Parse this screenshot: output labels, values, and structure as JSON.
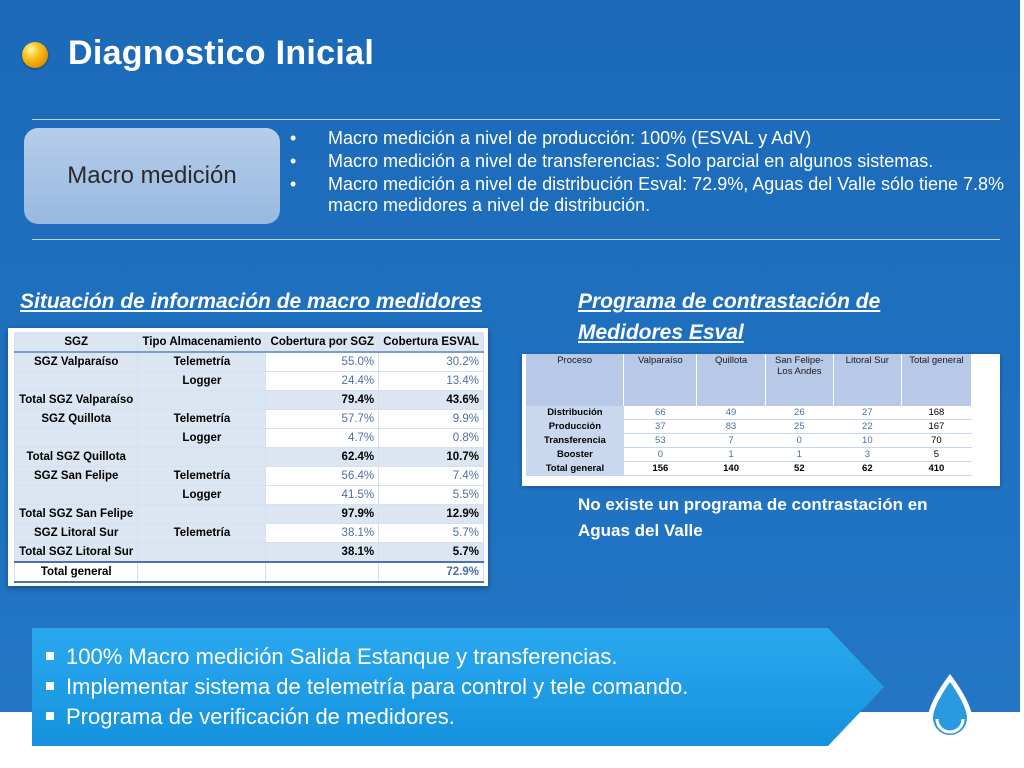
{
  "header": {
    "title": "Diagnostico Inicial"
  },
  "macro": {
    "label": "Macro medición",
    "bullets": [
      "Macro medición a nivel de producción: 100% (ESVAL y AdV)",
      "Macro medición a nivel de transferencias: Solo parcial en algunos sistemas.",
      "Macro medición a nivel de distribución Esval: 72.9%, Aguas del Valle sólo tiene 7.8% macro medidores a nivel de distribución."
    ]
  },
  "left": {
    "title": "Situación de información de macro medidores",
    "table": {
      "headers": [
        "SGZ",
        "Tipo Almacenamiento",
        "Cobertura por SGZ",
        "Cobertura ESVAL"
      ],
      "rows": [
        {
          "kind": "data",
          "sgz": "SGZ Valparaíso",
          "tipo": "Telemetría",
          "cob": "55.0%",
          "esv": "30.2%"
        },
        {
          "kind": "data",
          "sgz": "",
          "tipo": "Logger",
          "cob": "24.4%",
          "esv": "13.4%"
        },
        {
          "kind": "total",
          "sgz": "Total SGZ Valparaíso",
          "tipo": "",
          "cob": "79.4%",
          "esv": "43.6%"
        },
        {
          "kind": "data",
          "sgz": "SGZ Quillota",
          "tipo": "Telemetría",
          "cob": "57.7%",
          "esv": "9.9%"
        },
        {
          "kind": "data",
          "sgz": "",
          "tipo": "Logger",
          "cob": "4.7%",
          "esv": "0.8%"
        },
        {
          "kind": "total",
          "sgz": "Total SGZ Quillota",
          "tipo": "",
          "cob": "62.4%",
          "esv": "10.7%"
        },
        {
          "kind": "data",
          "sgz": "SGZ San Felipe",
          "tipo": "Telemetría",
          "cob": "56.4%",
          "esv": "7.4%"
        },
        {
          "kind": "data",
          "sgz": "",
          "tipo": "Logger",
          "cob": "41.5%",
          "esv": "5.5%"
        },
        {
          "kind": "total",
          "sgz": "Total SGZ San Felipe",
          "tipo": "",
          "cob": "97.9%",
          "esv": "12.9%"
        },
        {
          "kind": "data",
          "sgz": "SGZ Litoral Sur",
          "tipo": "Telemetría",
          "cob": "38.1%",
          "esv": "5.7%"
        },
        {
          "kind": "total",
          "sgz": "Total SGZ Litoral Sur",
          "tipo": "",
          "cob": "38.1%",
          "esv": "5.7%"
        },
        {
          "kind": "general",
          "sgz": "Total general",
          "tipo": "",
          "cob": "",
          "esv": "72.9%"
        }
      ]
    }
  },
  "right": {
    "title": "Programa de contrastación de Medidores Esval",
    "table": {
      "headers": [
        "Proceso",
        "Valparaíso",
        "Quillota",
        "San Felipe-Los Andes",
        "Litoral Sur",
        "Total general"
      ],
      "rows": [
        [
          "Distribución",
          "66",
          "49",
          "26",
          "27",
          "168"
        ],
        [
          "Producción",
          "37",
          "83",
          "25",
          "22",
          "167"
        ],
        [
          "Transferencia",
          "53",
          "7",
          "0",
          "10",
          "70"
        ],
        [
          "Booster",
          "0",
          "1",
          "1",
          "3",
          "5"
        ],
        [
          "Total general",
          "156",
          "140",
          "52",
          "62",
          "410"
        ]
      ]
    },
    "note": "No existe un programa de contrastación en Aguas del Valle"
  },
  "actions": [
    "100% Macro medición Salida Estanque y transferencias.",
    "Implementar sistema de telemetría para control y tele comando.",
    "Programa de verificación de medidores."
  ],
  "colors": {
    "background": "#1f6fbe",
    "accent_box": "#a8c4e6",
    "arrow": "#1ea0e8",
    "bullet": "#f7c21a"
  },
  "icons": {
    "title_bullet": "sphere-bullet-icon",
    "logo": "water-drop-icon"
  }
}
